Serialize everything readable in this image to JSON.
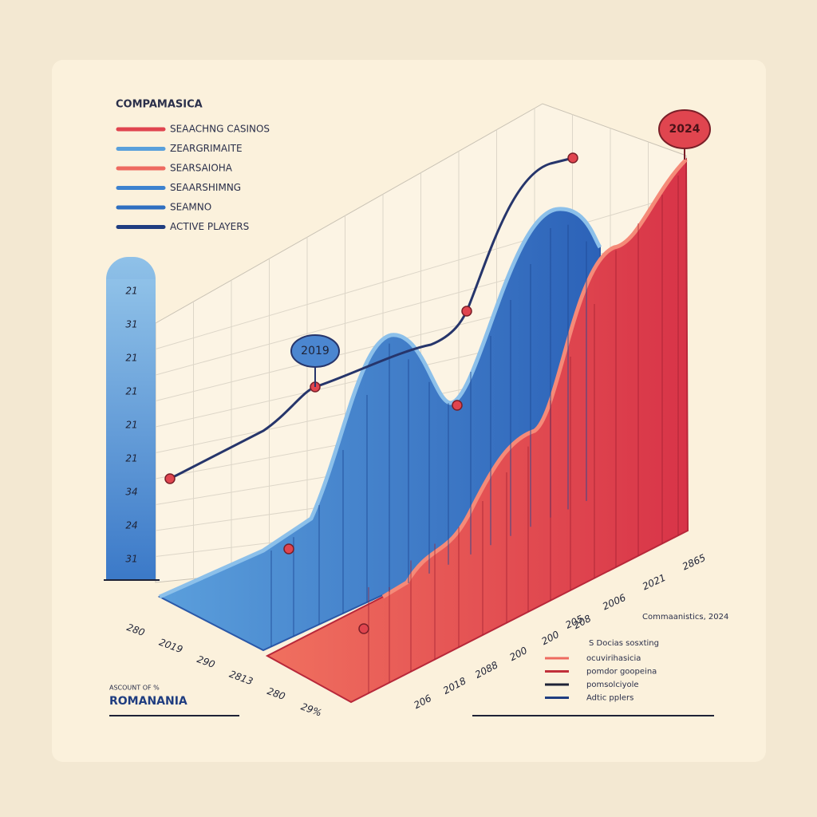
{
  "title": "COMPAMASICA",
  "legend": [
    {
      "label": "SEAACHNG CASINOS",
      "color": "#e0454f"
    },
    {
      "label": "ZEARGRIMAITE",
      "color": "#5aa0db"
    },
    {
      "label": "SEARSAIOHA",
      "color": "#ee6a60"
    },
    {
      "label": "SEAARSHIMNG",
      "color": "#3d82cf"
    },
    {
      "label": "SEAMNO",
      "color": "#2f6fc0"
    },
    {
      "label": "ACTIVE PLAYERS",
      "color": "#1f3d80"
    }
  ],
  "badges": [
    "2019",
    "2024"
  ],
  "pillar_labels": [
    "21",
    "31",
    "21",
    "21",
    "21",
    "21",
    "34",
    "24",
    "31"
  ],
  "left_axis_labels": [
    "280",
    "2019",
    "290",
    "2813",
    "280",
    "29%"
  ],
  "right_axis_labels": [
    "205",
    "2006",
    "2021",
    "2865"
  ],
  "bottom_axis_labels": [
    "206",
    "2018",
    "2088",
    "200",
    "200",
    "208"
  ],
  "source": "Commaanistics, 2024",
  "right_legend": {
    "heading": "S Docias sosxting",
    "items": [
      {
        "label": "ocuvirihasicia",
        "color": "#ee6a60"
      },
      {
        "label": "pomdor goopeina",
        "color": "#c0303a"
      },
      {
        "label": "pomsolciyole",
        "color": "#1e2236"
      },
      {
        "label": "Adtic pplers",
        "color": "#1f3d80"
      }
    ]
  },
  "footer": {
    "caption": "ASCOUNT OF %",
    "name": "ROMANANIA"
  }
}
